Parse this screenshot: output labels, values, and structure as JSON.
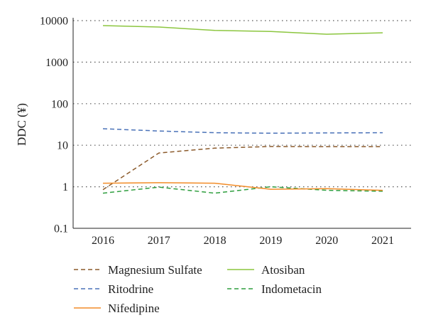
{
  "chart_data": {
    "type": "line",
    "title": "",
    "xlabel": "",
    "ylabel": "DDC (¥)",
    "y_scale": "log",
    "ylim": [
      0.1,
      10000
    ],
    "y_ticks": [
      0.1,
      1,
      10,
      100,
      1000,
      10000
    ],
    "y_tick_labels": [
      "0.1",
      "1",
      "10",
      "100",
      "1000",
      "10000"
    ],
    "categories": [
      "2016",
      "2017",
      "2018",
      "2019",
      "2020",
      "2021"
    ],
    "grid": "horizontal dotted",
    "legend_position": "bottom",
    "series": [
      {
        "name": "Magnesium Sulfate",
        "color": "#8b5a2b",
        "dash": "dashed",
        "values": [
          0.85,
          6.5,
          8.5,
          9.3,
          9.2,
          9.2
        ]
      },
      {
        "name": "Atosiban",
        "color": "#8cc63f",
        "dash": "solid",
        "values": [
          7600,
          7000,
          5800,
          5500,
          4700,
          5100
        ]
      },
      {
        "name": "Ritodrine",
        "color": "#4a72b8",
        "dash": "dashed",
        "values": [
          25,
          22,
          20,
          19.5,
          19.8,
          20
        ]
      },
      {
        "name": "Indometacin",
        "color": "#2e9e3e",
        "dash": "dashed",
        "values": [
          0.7,
          0.98,
          0.7,
          1.0,
          0.82,
          0.78
        ]
      },
      {
        "name": "Nifedipine",
        "color": "#f28c28",
        "dash": "solid",
        "values": [
          1.22,
          1.25,
          1.22,
          0.87,
          0.9,
          0.82
        ]
      }
    ]
  }
}
